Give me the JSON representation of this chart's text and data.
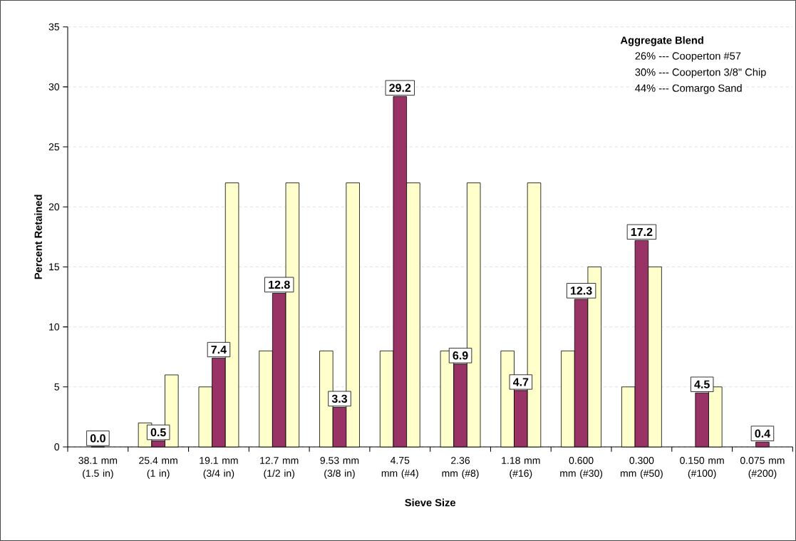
{
  "chart_data": {
    "type": "bar",
    "xlabel": "Sieve Size",
    "ylabel": "Percent Retained",
    "categories": [
      "38.1 mm (1.5 in)",
      "25.4 mm (1 in)",
      "19.1 mm (3/4 in)",
      "12.7 mm (1/2 in)",
      "9.53 mm (3/8 in)",
      "4.75 mm (#4)",
      "2.36 mm (#8)",
      "1.18 mm (#16)",
      "0.600 mm (#30)",
      "0.300 mm (#50)",
      "0.150 mm (#100)",
      "0.075 mm (#200)"
    ],
    "series": [
      {
        "color": "#ffffcc",
        "values": [
          null,
          2,
          5,
          8,
          8,
          8,
          8,
          8,
          8,
          5,
          null,
          null
        ]
      },
      {
        "color": "#993366",
        "values": [
          0.0,
          0.5,
          7.4,
          12.8,
          3.3,
          29.2,
          6.9,
          4.7,
          12.3,
          17.2,
          4.5,
          0.4
        ],
        "value_labels": [
          "0.0",
          "0.5",
          "7.4",
          "12.8",
          "3.3",
          "29.2",
          "6.9",
          "4.7",
          "12.3",
          "17.2",
          "4.5",
          "0.4"
        ]
      },
      {
        "color": "#ffffcc",
        "values": [
          null,
          6,
          22,
          22,
          22,
          22,
          22,
          22,
          15,
          15,
          5,
          null
        ]
      }
    ],
    "ylim": [
      0,
      35
    ],
    "yticks": [
      0,
      5,
      10,
      15,
      20,
      25,
      30,
      35
    ],
    "grid": "y",
    "annotations": [
      "Aggregate Blend",
      "26% --- Cooperton #57",
      "30% --- Cooperton 3/8\" Chip",
      "44% --- Comargo Sand"
    ]
  }
}
